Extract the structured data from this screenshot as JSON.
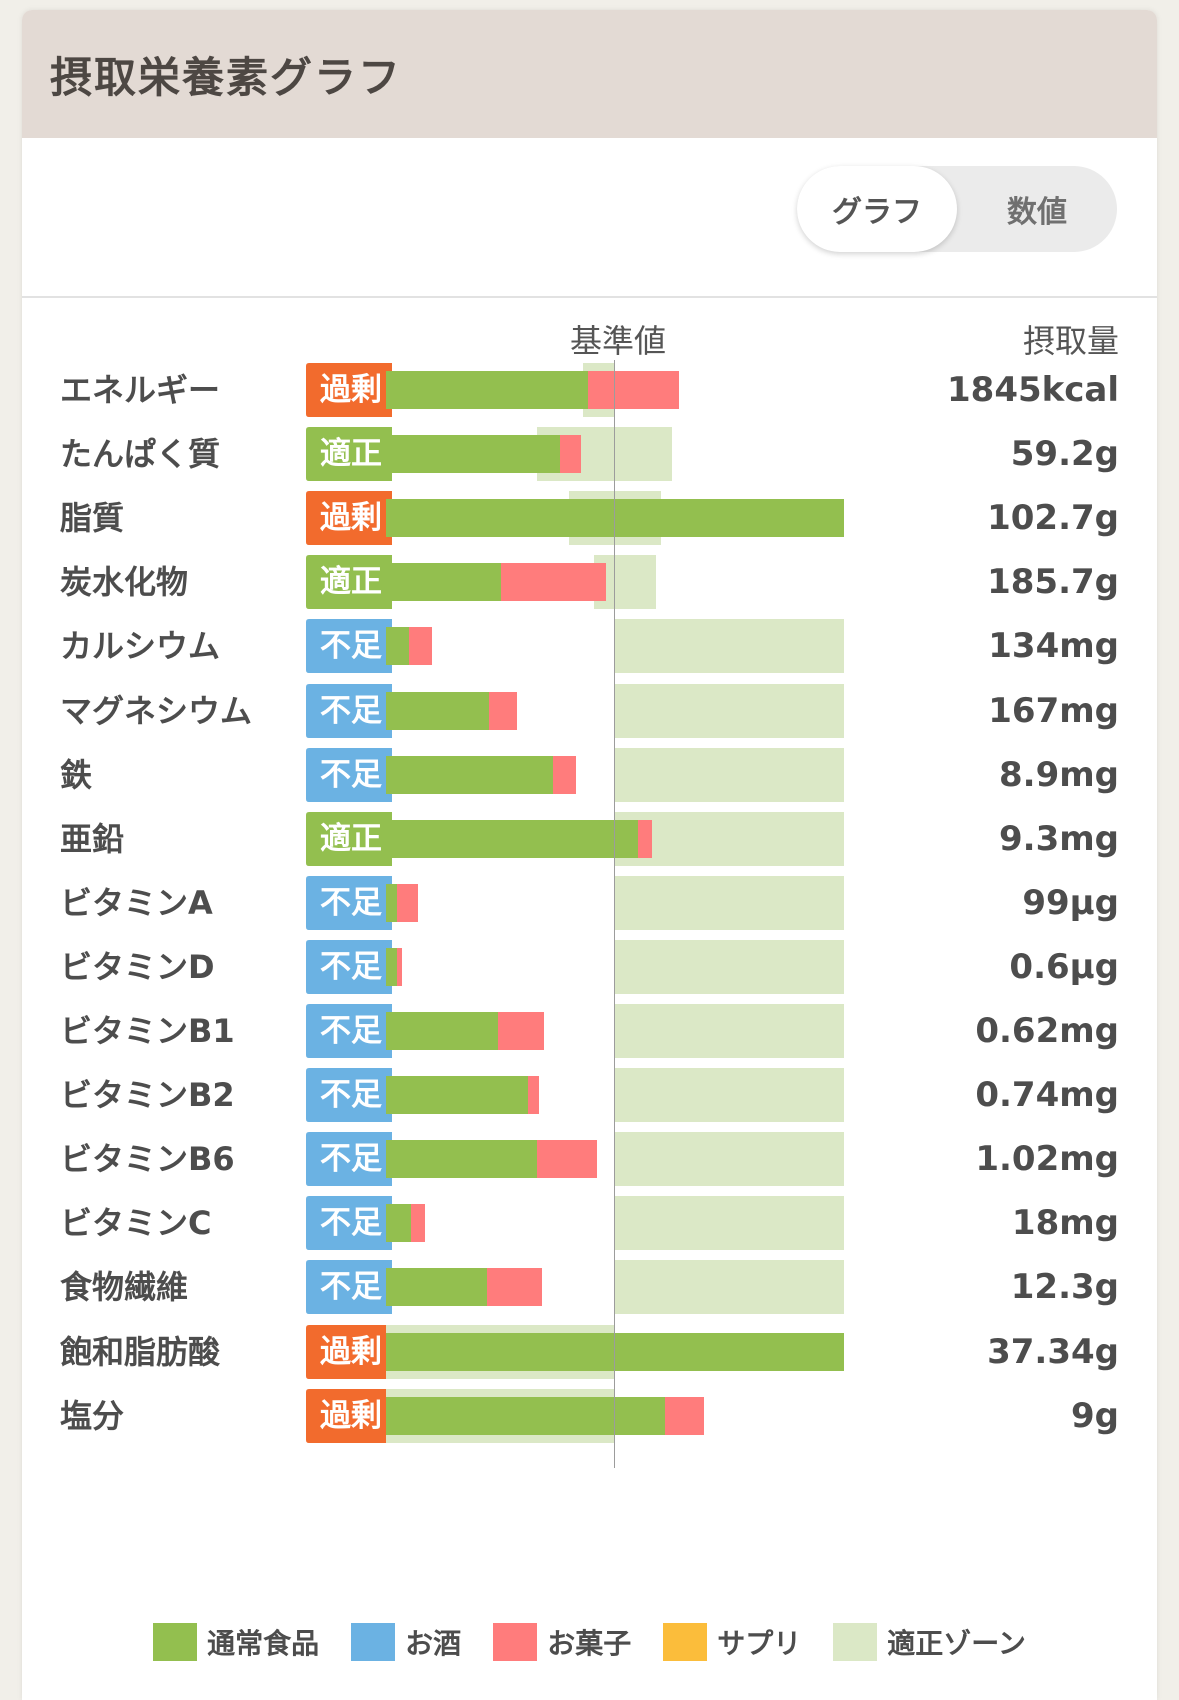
{
  "header": {
    "title": "摂取栄養素グラフ"
  },
  "toggle": {
    "graph_label": "グラフ",
    "number_label": "数値",
    "selected": "グラフ"
  },
  "columns": {
    "reference_label": "基準値",
    "amount_label": "摂取量"
  },
  "colors": {
    "normal_food": "#93bf4f",
    "alcohol": "#6bb2e3",
    "snack": "#ff7c7c",
    "supplement": "#fbbd3b",
    "proper_zone": "#dbe8c6",
    "status_excess": "#f26b2d",
    "status_proper": "#93bf4f",
    "status_lack": "#6bb2e3"
  },
  "status_labels": {
    "excess": "過剰",
    "proper": "適正",
    "lack": "不足"
  },
  "nutrients": [
    {
      "name": "エネルギー",
      "status": "過剰",
      "amount": "1845kcal",
      "normal_pct": 88,
      "snack_pct": 40,
      "zone_pct": [
        86,
        100
      ]
    },
    {
      "name": "たんぱく質",
      "status": "適正",
      "amount": "59.2g",
      "normal_pct": 76,
      "snack_pct": 9,
      "zone_pct": [
        66,
        125
      ]
    },
    {
      "name": "脂質",
      "status": "過剰",
      "amount": "102.7g",
      "normal_pct": 200,
      "snack_pct": 0,
      "zone_pct": [
        80,
        120
      ]
    },
    {
      "name": "炭水化物",
      "status": "適正",
      "amount": "185.7g",
      "normal_pct": 50,
      "snack_pct": 46,
      "zone_pct": [
        91,
        118
      ]
    },
    {
      "name": "カルシウム",
      "status": "不足",
      "amount": "134mg",
      "normal_pct": 10,
      "snack_pct": 10,
      "zone_pct": [
        100,
        200
      ]
    },
    {
      "name": "マグネシウム",
      "status": "不足",
      "amount": "167mg",
      "normal_pct": 45,
      "snack_pct": 12,
      "zone_pct": [
        100,
        200
      ]
    },
    {
      "name": "鉄",
      "status": "不足",
      "amount": "8.9mg",
      "normal_pct": 73,
      "snack_pct": 10,
      "zone_pct": [
        100,
        200
      ]
    },
    {
      "name": "亜鉛",
      "status": "適正",
      "amount": "9.3mg",
      "normal_pct": 110,
      "snack_pct": 6,
      "zone_pct": [
        100,
        200
      ]
    },
    {
      "name": "ビタミンA",
      "status": "不足",
      "amount": "99µg",
      "normal_pct": 5,
      "snack_pct": 9,
      "zone_pct": [
        100,
        200
      ]
    },
    {
      "name": "ビタミンD",
      "status": "不足",
      "amount": "0.6µg",
      "normal_pct": 5,
      "snack_pct": 2,
      "zone_pct": [
        100,
        200
      ]
    },
    {
      "name": "ビタミンB1",
      "status": "不足",
      "amount": "0.62mg",
      "normal_pct": 49,
      "snack_pct": 20,
      "zone_pct": [
        100,
        200
      ]
    },
    {
      "name": "ビタミンB2",
      "status": "不足",
      "amount": "0.74mg",
      "normal_pct": 62,
      "snack_pct": 5,
      "zone_pct": [
        100,
        200
      ]
    },
    {
      "name": "ビタミンB6",
      "status": "不足",
      "amount": "1.02mg",
      "normal_pct": 66,
      "snack_pct": 26,
      "zone_pct": [
        100,
        200
      ]
    },
    {
      "name": "ビタミンC",
      "status": "不足",
      "amount": "18mg",
      "normal_pct": 11,
      "snack_pct": 6,
      "zone_pct": [
        100,
        200
      ]
    },
    {
      "name": "食物繊維",
      "status": "不足",
      "amount": "12.3g",
      "normal_pct": 44,
      "snack_pct": 24,
      "zone_pct": [
        100,
        200
      ]
    },
    {
      "name": "飽和脂肪酸",
      "status": "過剰",
      "amount": "37.34g",
      "normal_pct": 200,
      "snack_pct": 0,
      "zone_pct": [
        0,
        100
      ]
    },
    {
      "name": "塩分",
      "status": "過剰",
      "amount": "9g",
      "normal_pct": 122,
      "snack_pct": 17,
      "zone_pct": [
        0,
        100
      ]
    }
  ],
  "legend": [
    {
      "label": "通常食品",
      "color": "#93bf4f"
    },
    {
      "label": "お酒",
      "color": "#6bb2e3"
    },
    {
      "label": "お菓子",
      "color": "#ff7c7c"
    },
    {
      "label": "サプリ",
      "color": "#fbbd3b"
    },
    {
      "label": "適正ゾーン",
      "color": "#dbe8c6"
    }
  ]
}
